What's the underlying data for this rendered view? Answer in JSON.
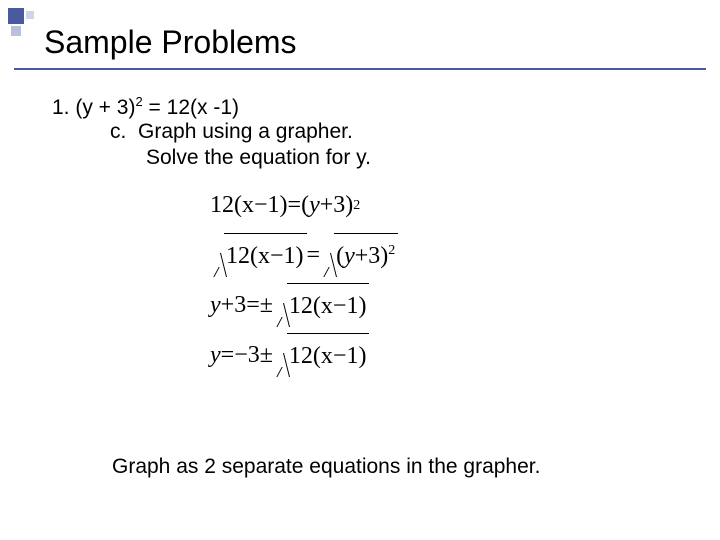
{
  "title": "Sample Problems",
  "problem": {
    "number": "1.",
    "equation_lhs": "(y + 3)",
    "equation_exp": "2",
    "equation_rhs": " = 12(x -1)",
    "sub_label": "c.",
    "sub_text": "Graph using a grapher.",
    "solve_text": "Solve the equation for y."
  },
  "derivation": {
    "eq1_lhs": "12(x−1)",
    "eq1_rhs": "(y+3)",
    "eq1_exp": "2",
    "eq2_lhs": "12(x−1)",
    "eq2_rhs": "(y+3)",
    "eq2_exp": "2",
    "eq3_lhs": "y+3",
    "eq3_rhs": "12(x−1)",
    "eq4_lhs": "y",
    "eq4_rhs_const": "−3",
    "eq4_rhs_rad": "12(x−1)",
    "pm": "±",
    "eq": " = "
  },
  "note": "Graph as 2 separate equations in the grapher.",
  "colors": {
    "accent": "#4a5a9e",
    "accent_light1": "#b8c0dc",
    "accent_light2": "#cfd5e8",
    "text": "#000000",
    "bg": "#ffffff"
  },
  "typography": {
    "title_fontsize": 32,
    "body_fontsize": 21,
    "math_fontsize": 24,
    "body_font": "Arial",
    "math_font": "Times New Roman Italic"
  }
}
